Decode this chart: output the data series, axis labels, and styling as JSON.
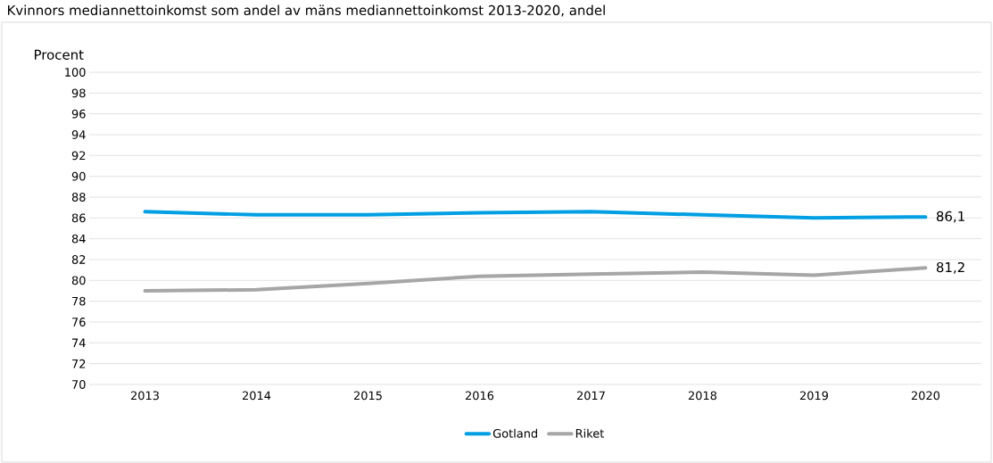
{
  "chart_data": {
    "type": "line",
    "title": "Kvinnors mediannettoinkomst som andel av mäns mediannettoinkomst 2013-2020, andel",
    "ylabel": "Procent",
    "categories": [
      "2013",
      "2014",
      "2015",
      "2016",
      "2017",
      "2018",
      "2019",
      "2020"
    ],
    "series": [
      {
        "name": "Gotland",
        "color": "#009fe3",
        "values": [
          86.6,
          86.3,
          86.3,
          86.5,
          86.6,
          86.3,
          86.0,
          86.1
        ],
        "value_labels": [
          null,
          null,
          null,
          null,
          null,
          null,
          null,
          "86,1"
        ]
      },
      {
        "name": "Riket",
        "color": "#a6a6a6",
        "values": [
          79.0,
          79.1,
          79.7,
          80.4,
          80.6,
          80.8,
          80.5,
          81.2
        ],
        "value_labels": [
          null,
          null,
          null,
          null,
          null,
          null,
          null,
          "81,2"
        ]
      }
    ],
    "ylim": [
      70,
      100
    ],
    "yticks": [
      70,
      72,
      74,
      76,
      78,
      80,
      82,
      84,
      86,
      88,
      90,
      92,
      94,
      96,
      98,
      100
    ],
    "grid": "y",
    "legend": "bottom",
    "marker": "none",
    "line_style": "solid"
  }
}
